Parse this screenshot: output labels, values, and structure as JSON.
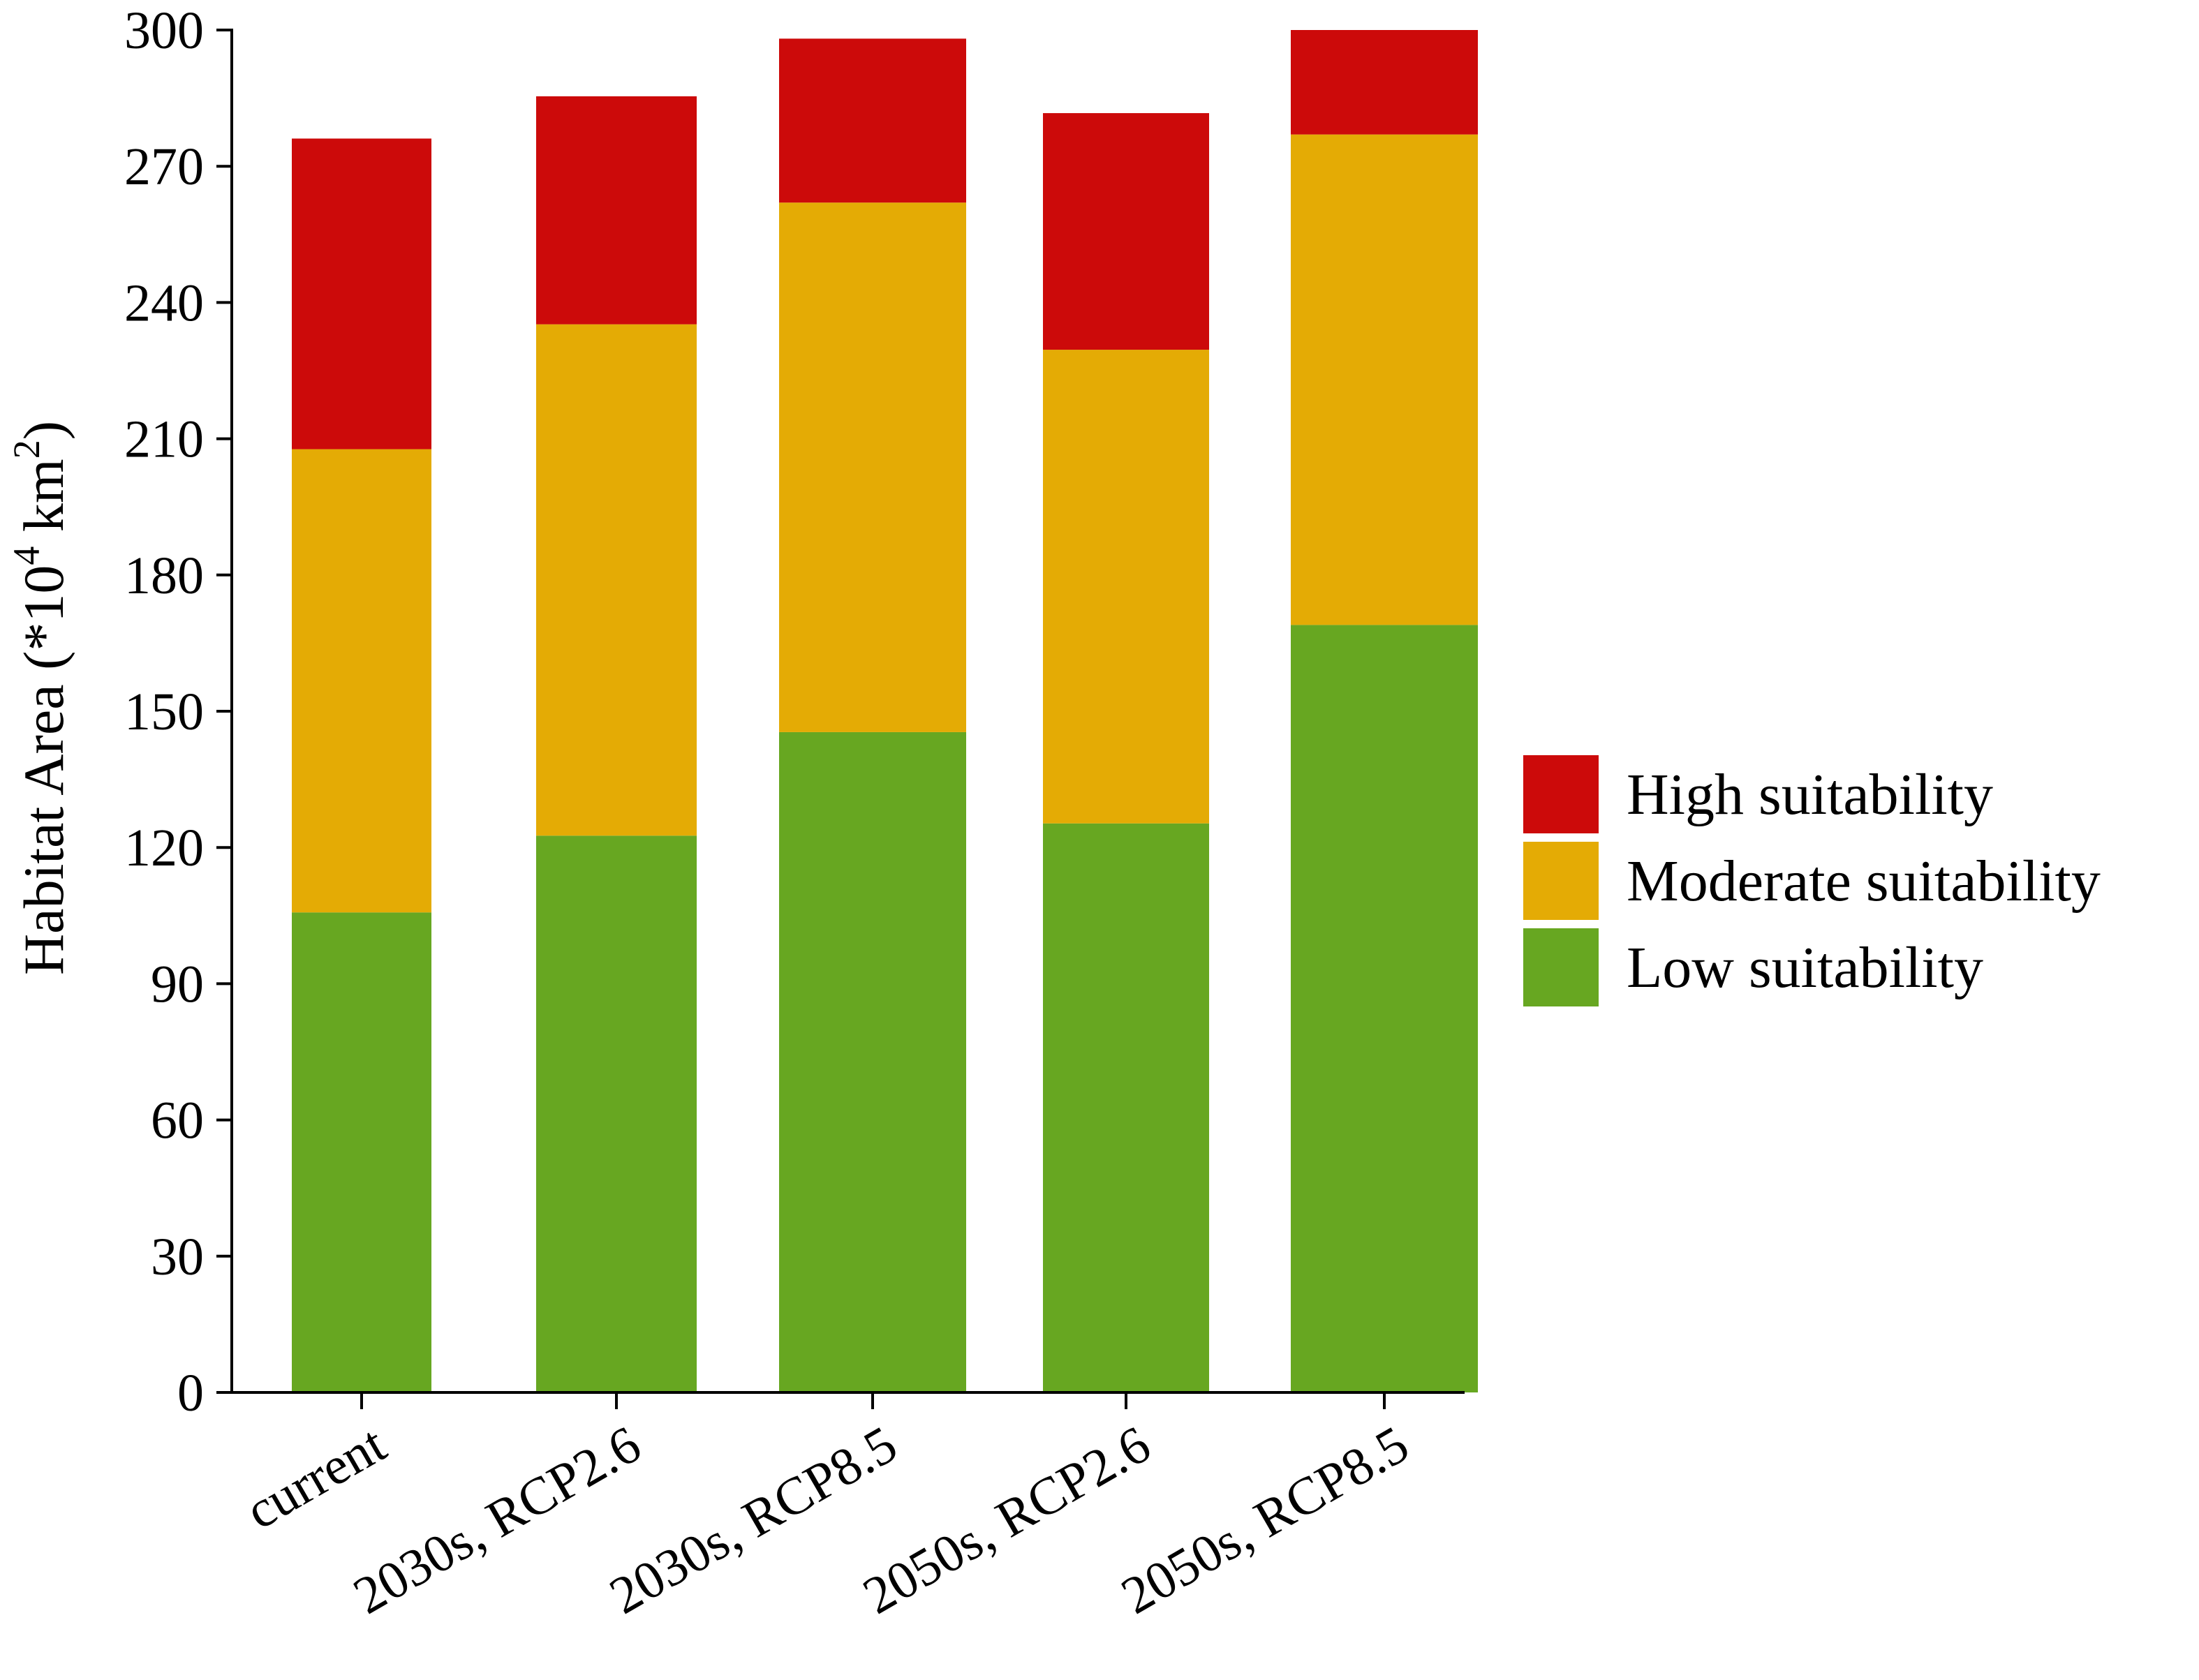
{
  "chart_data": {
    "type": "bar",
    "stacked": true,
    "title": "",
    "xlabel": "",
    "ylabel": {
      "prefix": "Habitat Area (*10",
      "exp1": "4",
      "mid": " km",
      "exp2": "2",
      "suffix": ")"
    },
    "ylim": [
      0,
      300
    ],
    "yticks": [
      0,
      30,
      60,
      90,
      120,
      150,
      180,
      210,
      240,
      270,
      300
    ],
    "categories": [
      "current",
      "2030s, RCP2.6",
      "2030s, RCP8.5",
      "2050s, RCP2.6",
      "2050s, RCP8.5"
    ],
    "series": [
      {
        "name": "Low suitability",
        "color": "#67A721",
        "values": [
          105.7,
          122.6,
          145.4,
          125.3,
          169.0
        ]
      },
      {
        "name": "Moderate suitability",
        "color": "#E4AB05",
        "values": [
          102.0,
          112.6,
          116.6,
          104.3,
          108.0
        ]
      },
      {
        "name": "High suitability",
        "color": "#CC0A0A",
        "values": [
          68.4,
          50.2,
          36.1,
          52.1,
          23.0
        ]
      }
    ],
    "legend_order": [
      "High suitability",
      "Moderate suitability",
      "Low suitability"
    ],
    "legend_position": "right",
    "grid": false
  }
}
